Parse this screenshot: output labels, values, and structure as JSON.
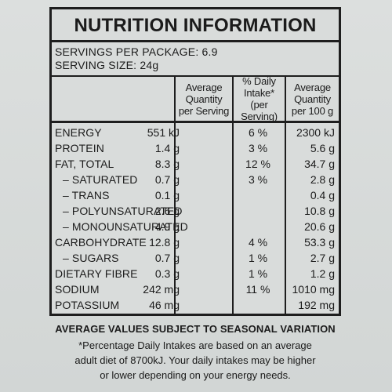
{
  "title": "NUTRITION INFORMATION",
  "servings_per_package": "SERVINGS PER PACKAGE: 6.9",
  "serving_size": "SERVING SIZE: 24g",
  "headers": {
    "per_serving": [
      "Average",
      "Quantity",
      "per Serving"
    ],
    "daily_intake": [
      "% Daily",
      "Intake*",
      "(per Serving)"
    ],
    "per_100g": [
      "Average",
      "Quantity",
      "per 100 g"
    ]
  },
  "rows": [
    {
      "label": "ENERGY",
      "per_serving": "551 kJ",
      "daily_intake": "6 %",
      "per_100g": "2300 kJ"
    },
    {
      "label": "PROTEIN",
      "per_serving": "1.4 g",
      "daily_intake": "3 %",
      "per_100g": "5.6 g"
    },
    {
      "label": "FAT, TOTAL",
      "per_serving": "8.3 g",
      "daily_intake": "12 %",
      "per_100g": "34.7 g"
    },
    {
      "label": "– SATURATED",
      "per_serving": "0.7 g",
      "daily_intake": "3 %",
      "per_100g": "2.8 g"
    },
    {
      "label": "– TRANS",
      "per_serving": "0.1 g",
      "daily_intake": "",
      "per_100g": "0.4 g"
    },
    {
      "label": "– POLYUNSATURATED",
      "per_serving": "2.6 g",
      "daily_intake": "",
      "per_100g": "10.8 g"
    },
    {
      "label": "– MONOUNSATURATED",
      "per_serving": "4.9 g",
      "daily_intake": "",
      "per_100g": "20.6 g"
    },
    {
      "label": "CARBOHYDRATE",
      "per_serving": "12.8 g",
      "daily_intake": "4 %",
      "per_100g": "53.3 g"
    },
    {
      "label": "– SUGARS",
      "per_serving": "0.7 g",
      "daily_intake": "1 %",
      "per_100g": "2.7 g"
    },
    {
      "label": "DIETARY FIBRE",
      "per_serving": "0.3 g",
      "daily_intake": "1 %",
      "per_100g": "1.2 g"
    },
    {
      "label": "SODIUM",
      "per_serving": "242 mg",
      "daily_intake": "11 %",
      "per_100g": "1010 mg"
    },
    {
      "label": "POTASSIUM",
      "per_serving": "46 mg",
      "daily_intake": "",
      "per_100g": "192 mg"
    }
  ],
  "footer": {
    "line1": "AVERAGE VALUES SUBJECT TO SEASONAL VARIATION",
    "line2": "*Percentage Daily Intakes are based on an average",
    "line3": "adult diet of 8700kJ. Your daily intakes may be higher",
    "line4": "or lower depending on your energy needs."
  }
}
